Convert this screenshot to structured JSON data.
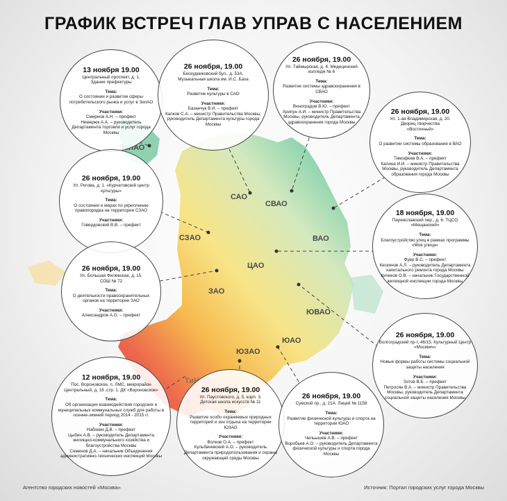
{
  "title": "ГРАФИК ВСТРЕЧ ГЛАВ УПРАВ С НАСЕЛЕНИЕМ",
  "districts": [
    "ЗелАО",
    "САО",
    "СВАО",
    "СЗАО",
    "ВАО",
    "ЦАО",
    "ЗАО",
    "ЮВАО",
    "ЮЗАО",
    "ЮАО",
    "ТиНАО"
  ],
  "theme_label": "Тема:",
  "participants_label": "Участники:",
  "meetings": [
    {
      "date": "13 ноября 19.00",
      "place": "Центральный проспект, д. 1.\nЗдание префектуры",
      "theme": "О состоянии и развитии сферы потребительского рынка и услуг в ЗелАО",
      "participants": "Смирнов А.Н. – префект\nНемерюк А.А. – руководитель Департамента торговли и услуг города Москвы"
    },
    {
      "date": "26 ноября, 19.00",
      "place": "Бескудниковский бул., д. 53А.\nМузыкальная школа им. И.С. Баха",
      "theme": "Развитие культуры в САО",
      "participants": "Базанчук В.И. – префект\nКапков С.А. – министр Правительства Москвы, руководитель Департамента культуры города Москвы"
    },
    {
      "date": "26 ноября, 19.00",
      "place": "Ул. Таймырская, д. 4. Медицинский колледж № 6",
      "theme": "Развитие системы здравоохранения в СВАО",
      "participants": "Виноградов В.Ю. – префект\nХрипун А.И. – министр Правительства Москвы, руководитель Департамента здравоохранения города Москвы"
    },
    {
      "date": "26 ноября, 19.00",
      "place": "Ул. 1-ая Владимирская, д. 20.\nДворец творчества\n«Восточный»",
      "theme": "О развитии системы образования в ВАО",
      "participants": "Тимофеев В.А. – префект\nКалина И.И. – министр Правительства Москвы, руководитель Департамента образования города Москвы"
    },
    {
      "date": "26 ноября, 19.00",
      "place": "Ул. Рогова, д. 1. «Курчатовский центр культуры»",
      "theme": "О состоянии и мерах по укреплению правопорядка на территории СЗАО",
      "participants": "Говердовский В.В. – префект"
    },
    {
      "date": "18 ноября, 19.00",
      "place": "Переяславский пер., д. 6. ТЦСО\n«Мещанский»",
      "theme": "Благоустройство улиц в рамках программы\n«Моя улица»",
      "participants": "Фуер В.С. – префект\nКескинов А.Л. – руководитель Департамента капитального ремонта города Москвы\nКичиков О.В. – начальник Государственной жилищной инспекции города Москвы"
    },
    {
      "date": "26 ноября, 19.00",
      "place": "Ул. Большая Филевская, д. 15.\nСОШ № 72",
      "theme": "О деятельности правоохранительных органов на территории ЗАО",
      "participants": "Александров А.О. – префект"
    },
    {
      "date": "26 ноября, 19.00",
      "place": "Волгоградский пр-т, 46/15. Культурный Центр «Москвич»",
      "theme": "Новые формы работы системы социальной защиты населения",
      "participants": "Зотов В.Б. – префект\nПетросян В.А. – министр Правительства Москвы, руководитель Департамента социальной защиты населения Москвы"
    },
    {
      "date": "12 ноября, 19.00",
      "place": "Пос. Вороновское, п. ЛМС, микрорайон Центральный, д. 16 ,стр. 1. ДК «Вороновское»",
      "theme": "Об организации взаимодействия городских и муниципальных коммунальных служб для работы в осенне-зимний период 2014 - 2015 гг.",
      "participants": "Набокин Д.В. – префект\nЦыбин А.В. – руководитель Департамента жилищно-коммунального хозяйства и благоустройства Москвы\nСеменов Д.А. – начальник Объединения административно-технических инспекций Москвы"
    },
    {
      "date": "26 ноября, 19.00",
      "place": "Ул. Паустовского, д. 5, корп. 3.\nДетская школа искусств № 11",
      "theme": "Развитие особо охраняемых природных территорий и зон отдыха на территории ЮЗАО",
      "participants": "Волков О.А. – префект\nКульбачевский А.О. – руководитель Департамента природопользования и охраны окружающей среды Москвы"
    },
    {
      "date": "26 ноября, 19.00",
      "place": "Сумской пр., д. 21А. Лицей № 1158",
      "theme": "Развитие физической культуры и спорта на территории ЮАО",
      "participants": "Чельышев А.В. – префект\nВоробьев А.О. – руководитель Департамента физической культуры и спорта города Москвы"
    }
  ],
  "footer": {
    "left": "Агентство городских новостей «Москва»",
    "right": "Источник: Портал городских услуг города Москвы"
  }
}
